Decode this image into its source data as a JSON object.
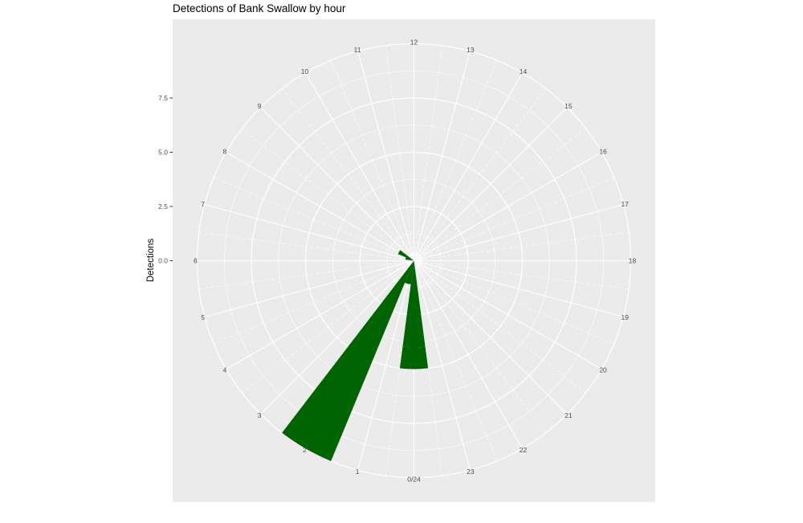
{
  "chart_data": {
    "type": "bar",
    "coord": "polar",
    "title": "Detections of Bank Swallow by hour",
    "xlabel": "",
    "ylabel": "Detections",
    "hours": [
      1,
      2,
      3,
      4,
      5,
      6,
      7,
      8,
      9,
      10,
      11,
      12,
      13,
      14,
      15,
      16,
      17,
      18,
      19,
      20,
      21,
      22,
      23,
      24
    ],
    "hour_labels": [
      "1",
      "2",
      "3",
      "4",
      "5",
      "6",
      "7",
      "8",
      "9",
      "10",
      "11",
      "12",
      "13",
      "14",
      "15",
      "16",
      "17",
      "18",
      "19",
      "20",
      "21",
      "22",
      "23",
      "0/24"
    ],
    "series": [
      {
        "values": [
          1.1,
          10,
          0,
          0,
          0,
          0,
          0,
          0,
          0,
          0,
          0,
          0,
          0,
          0,
          0,
          0,
          0,
          0,
          0,
          0,
          0,
          0,
          0,
          4
        ]
      },
      {
        "values": [
          0,
          0,
          0,
          0,
          0,
          0,
          0.4,
          0.8,
          0,
          0,
          0,
          0,
          0,
          0,
          0,
          0,
          0,
          0,
          0,
          0,
          0,
          0,
          0,
          1
        ]
      }
    ],
    "y_ticks": [
      0,
      2.5,
      5,
      7.5
    ],
    "y_tick_labels": [
      "0.0",
      "2.5",
      "5.0",
      "7.5"
    ],
    "ylim": [
      0,
      10
    ],
    "bar_color": "#006400",
    "panel_background": "#ebebeb",
    "grid": true,
    "legend": "none"
  }
}
